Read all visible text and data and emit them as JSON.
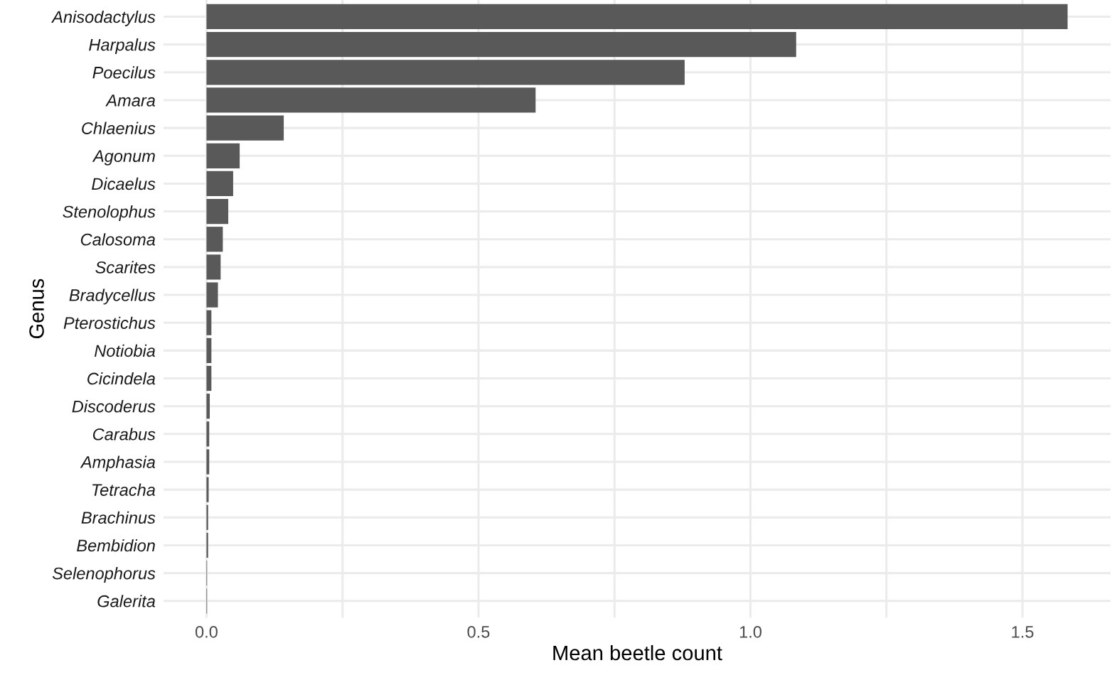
{
  "chart_data": {
    "type": "bar",
    "orientation": "horizontal",
    "xlabel": "Mean beetle count",
    "ylabel": "Genus",
    "categories": [
      "Anisodactylus",
      "Harpalus",
      "Poecilus",
      "Amara",
      "Chlaenius",
      "Agonum",
      "Dicaelus",
      "Stenolophus",
      "Calosoma",
      "Scarites",
      "Bradycellus",
      "Pterostichus",
      "Notiobia",
      "Cicindela",
      "Discoderus",
      "Carabus",
      "Amphasia",
      "Tetracha",
      "Brachinus",
      "Bembidion",
      "Selenophorus",
      "Galerita"
    ],
    "values": [
      1.583,
      1.084,
      0.879,
      0.605,
      0.142,
      0.061,
      0.049,
      0.04,
      0.03,
      0.026,
      0.021,
      0.009,
      0.009,
      0.009,
      0.006,
      0.005,
      0.005,
      0.004,
      0.003,
      0.003,
      0.001,
      0.001
    ],
    "color": "#595959",
    "xlim": [
      -0.079,
      1.662
    ],
    "xticks": [
      {
        "value": 0,
        "label": "0.0"
      },
      {
        "value": 0.25,
        "label": null
      },
      {
        "value": 0.5,
        "label": "0.5"
      },
      {
        "value": 0.75,
        "label": null
      },
      {
        "value": 1.0,
        "label": "1.0"
      },
      {
        "value": 1.25,
        "label": null
      },
      {
        "value": 1.5,
        "label": "1.5"
      }
    ],
    "grid": true
  }
}
